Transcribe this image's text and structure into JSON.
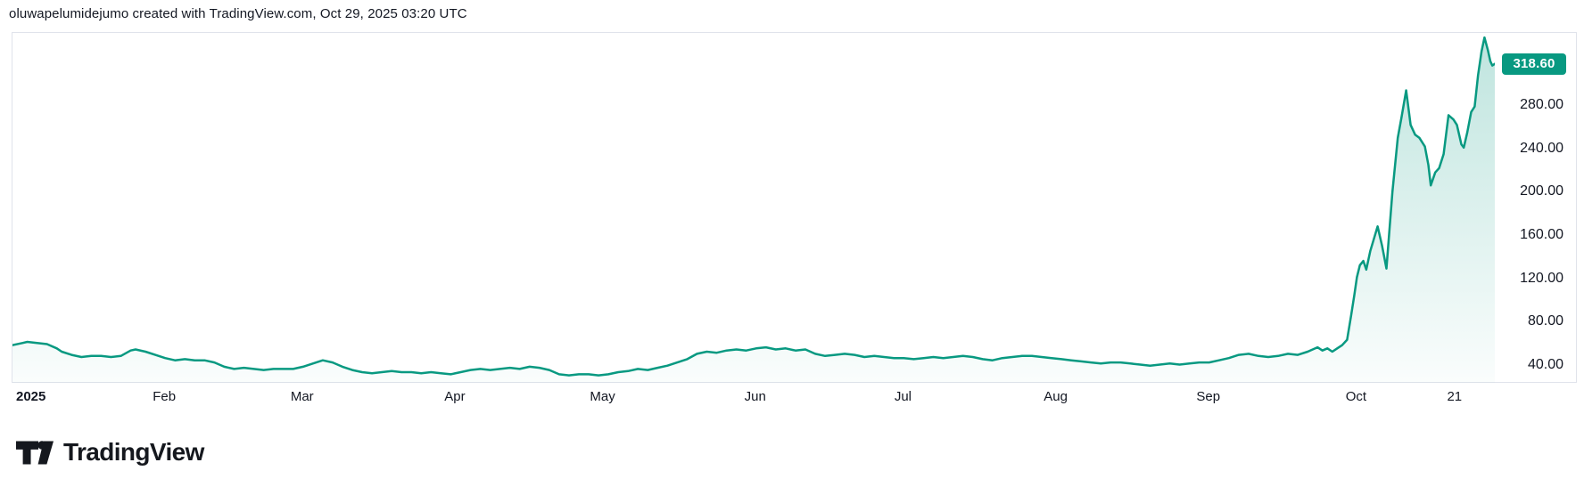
{
  "header": {
    "attribution": "oluwapelumidejumo created with TradingView.com, Oct 29, 2025 03:20 UTC"
  },
  "chart": {
    "accent_color": "#089981",
    "frame_border_color": "#e0e3eb",
    "text_color": "#131722",
    "price_badge": {
      "value": "318.60",
      "bg": "#089981",
      "text_color": "#ffffff"
    },
    "y_axis": {
      "ticks": [
        "280.00",
        "240.00",
        "200.00",
        "160.00",
        "120.00",
        "80.00",
        "40.00"
      ],
      "tick_values": [
        280,
        240,
        200,
        160,
        120,
        80,
        40
      ]
    },
    "x_axis": {
      "labels": [
        {
          "label": "2025",
          "day": 4,
          "bold": true
        },
        {
          "label": "Feb",
          "day": 31
        },
        {
          "label": "Mar",
          "day": 59
        },
        {
          "label": "Apr",
          "day": 90
        },
        {
          "label": "May",
          "day": 120
        },
        {
          "label": "Jun",
          "day": 151
        },
        {
          "label": "Jul",
          "day": 181
        },
        {
          "label": "Aug",
          "day": 212
        },
        {
          "label": "Sep",
          "day": 243
        },
        {
          "label": "Oct",
          "day": 273
        },
        {
          "label": "21",
          "day": 293
        }
      ]
    }
  },
  "chart_data": {
    "type": "area",
    "title": "",
    "xlabel": "",
    "ylabel": "",
    "x_domain_days": 301,
    "y_axis_range": [
      23.1,
      347.2
    ],
    "y_ticks": [
      40,
      80,
      120,
      160,
      200,
      240,
      280
    ],
    "last_price": 318.6,
    "line_color": "#089981",
    "fill_gradient_top": "rgba(8,153,129,0.26)",
    "fill_gradient_bottom": "rgba(8,153,129,0.02)",
    "points": [
      [
        0,
        58
      ],
      [
        2,
        60
      ],
      [
        3,
        61
      ],
      [
        5,
        60
      ],
      [
        7,
        59
      ],
      [
        9,
        55
      ],
      [
        10,
        52
      ],
      [
        12,
        49
      ],
      [
        14,
        47
      ],
      [
        16,
        48
      ],
      [
        18,
        48
      ],
      [
        20,
        47
      ],
      [
        22,
        48
      ],
      [
        24,
        53
      ],
      [
        25,
        54
      ],
      [
        27,
        52
      ],
      [
        29,
        49
      ],
      [
        31,
        46
      ],
      [
        33,
        44
      ],
      [
        35,
        45
      ],
      [
        37,
        44
      ],
      [
        39,
        44
      ],
      [
        41,
        42
      ],
      [
        43,
        38
      ],
      [
        45,
        36
      ],
      [
        47,
        37
      ],
      [
        49,
        36
      ],
      [
        51,
        35
      ],
      [
        53,
        36
      ],
      [
        55,
        36
      ],
      [
        57,
        36
      ],
      [
        59,
        38
      ],
      [
        61,
        41
      ],
      [
        63,
        44
      ],
      [
        65,
        42
      ],
      [
        67,
        38
      ],
      [
        69,
        35
      ],
      [
        71,
        33
      ],
      [
        73,
        32
      ],
      [
        75,
        33
      ],
      [
        77,
        34
      ],
      [
        79,
        33
      ],
      [
        81,
        33
      ],
      [
        83,
        32
      ],
      [
        85,
        33
      ],
      [
        87,
        32
      ],
      [
        89,
        31
      ],
      [
        91,
        33
      ],
      [
        93,
        35
      ],
      [
        95,
        36
      ],
      [
        97,
        35
      ],
      [
        99,
        36
      ],
      [
        101,
        37
      ],
      [
        103,
        36
      ],
      [
        105,
        38
      ],
      [
        107,
        37
      ],
      [
        109,
        35
      ],
      [
        111,
        31
      ],
      [
        113,
        30
      ],
      [
        115,
        31
      ],
      [
        117,
        31
      ],
      [
        119,
        30
      ],
      [
        121,
        31
      ],
      [
        123,
        33
      ],
      [
        125,
        34
      ],
      [
        127,
        36
      ],
      [
        129,
        35
      ],
      [
        131,
        37
      ],
      [
        133,
        39
      ],
      [
        135,
        42
      ],
      [
        137,
        45
      ],
      [
        139,
        50
      ],
      [
        141,
        52
      ],
      [
        143,
        51
      ],
      [
        145,
        53
      ],
      [
        147,
        54
      ],
      [
        149,
        53
      ],
      [
        151,
        55
      ],
      [
        153,
        56
      ],
      [
        155,
        54
      ],
      [
        157,
        55
      ],
      [
        159,
        53
      ],
      [
        161,
        54
      ],
      [
        163,
        50
      ],
      [
        165,
        48
      ],
      [
        167,
        49
      ],
      [
        169,
        50
      ],
      [
        171,
        49
      ],
      [
        173,
        47
      ],
      [
        175,
        48
      ],
      [
        177,
        47
      ],
      [
        179,
        46
      ],
      [
        181,
        46
      ],
      [
        183,
        45
      ],
      [
        185,
        46
      ],
      [
        187,
        47
      ],
      [
        189,
        46
      ],
      [
        191,
        47
      ],
      [
        193,
        48
      ],
      [
        195,
        47
      ],
      [
        197,
        45
      ],
      [
        199,
        44
      ],
      [
        201,
        46
      ],
      [
        203,
        47
      ],
      [
        205,
        48
      ],
      [
        207,
        48
      ],
      [
        209,
        47
      ],
      [
        211,
        46
      ],
      [
        213,
        45
      ],
      [
        215,
        44
      ],
      [
        217,
        43
      ],
      [
        219,
        42
      ],
      [
        221,
        41
      ],
      [
        223,
        42
      ],
      [
        225,
        42
      ],
      [
        227,
        41
      ],
      [
        229,
        40
      ],
      [
        231,
        39
      ],
      [
        233,
        40
      ],
      [
        235,
        41
      ],
      [
        237,
        40
      ],
      [
        239,
        41
      ],
      [
        241,
        42
      ],
      [
        243,
        42
      ],
      [
        245,
        44
      ],
      [
        247,
        46
      ],
      [
        249,
        49
      ],
      [
        251,
        50
      ],
      [
        253,
        48
      ],
      [
        255,
        47
      ],
      [
        257,
        48
      ],
      [
        259,
        50
      ],
      [
        261,
        49
      ],
      [
        263,
        52
      ],
      [
        265,
        56
      ],
      [
        266,
        53
      ],
      [
        267,
        55
      ],
      [
        268,
        52
      ],
      [
        269,
        55
      ],
      [
        270,
        58
      ],
      [
        271,
        63
      ],
      [
        271.8,
        85
      ],
      [
        272.5,
        105
      ],
      [
        273,
        121
      ],
      [
        273.6,
        132
      ],
      [
        274.3,
        136
      ],
      [
        274.9,
        128
      ],
      [
        275.7,
        145
      ],
      [
        277.2,
        168
      ],
      [
        278.1,
        150
      ],
      [
        279,
        129
      ],
      [
        280.2,
        200
      ],
      [
        281.3,
        250
      ],
      [
        282.1,
        270
      ],
      [
        283,
        294
      ],
      [
        283.9,
        262
      ],
      [
        284.8,
        253
      ],
      [
        285.7,
        250
      ],
      [
        286.8,
        242
      ],
      [
        287.5,
        225
      ],
      [
        288,
        206
      ],
      [
        288.9,
        218
      ],
      [
        289.7,
        222
      ],
      [
        290.6,
        235
      ],
      [
        291.6,
        271
      ],
      [
        292.6,
        267
      ],
      [
        293.3,
        262
      ],
      [
        294.2,
        244
      ],
      [
        294.7,
        241
      ],
      [
        295.4,
        255
      ],
      [
        296.2,
        274
      ],
      [
        296.9,
        279
      ],
      [
        297.6,
        308
      ],
      [
        298.3,
        330
      ],
      [
        298.9,
        343
      ],
      [
        299.6,
        331
      ],
      [
        300.1,
        321
      ],
      [
        300.5,
        317
      ],
      [
        301,
        318.6
      ]
    ]
  },
  "footer": {
    "logo_text": "TradingView"
  }
}
